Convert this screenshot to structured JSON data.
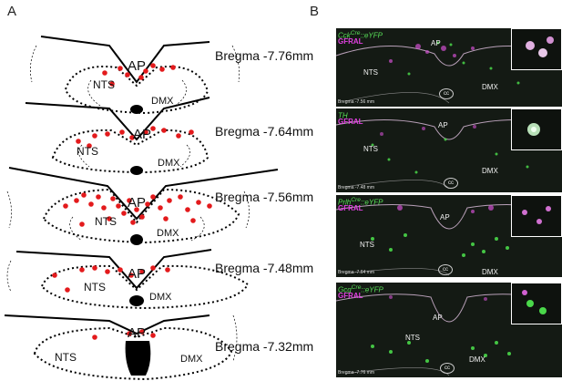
{
  "panel_a": {
    "letter": "A",
    "sections": [
      {
        "bregma": "Bregma -7.76mm",
        "ap": "AP",
        "nts": "NTS",
        "dmx": "DMX"
      },
      {
        "bregma": "Bregma -7.64mm",
        "ap": "AP",
        "nts": "NTS",
        "dmx": "DMX"
      },
      {
        "bregma": "Bregma -7.56mm",
        "ap": "AP",
        "nts": "NTS",
        "dmx": "DMX"
      },
      {
        "bregma": "Bregma -7.48mm",
        "ap": "AP",
        "nts": "NTS",
        "dmx": "DMX"
      },
      {
        "bregma": "Bregma -7.32mm",
        "ap": "AP",
        "nts": "NTS",
        "dmx": "DMX"
      }
    ]
  },
  "panel_b": {
    "letter": "B",
    "images": [
      {
        "marker": "Cck",
        "sup": "Cre",
        "suffix": "::eYFP",
        "receptor": "GFRAL",
        "ap": "AP",
        "nts": "NTS",
        "dmx": "DMX",
        "cc": "cc",
        "bregma": "Bregma -7.56 mm"
      },
      {
        "marker": "TH",
        "sup": "",
        "suffix": "",
        "receptor": "GFRAL",
        "ap": "AP",
        "nts": "NTS",
        "dmx": "DMX",
        "cc": "cc",
        "bregma": "Bregma -7.48 mm"
      },
      {
        "marker": "Prlh",
        "sup": "Cre",
        "suffix": "::eYFP",
        "receptor": "GFRAL",
        "ap": "AP",
        "nts": "NTS",
        "dmx": "DMX",
        "cc": "cc",
        "bregma": "Bregma -7.64 mm"
      },
      {
        "marker": "Gcg",
        "sup": "Cre",
        "suffix": "::eYFP",
        "receptor": "GFRAL",
        "ap": "AP",
        "nts": "NTS",
        "dmx": "DMX",
        "cc": "cc",
        "bregma": "Bregma -7.76 mm"
      }
    ]
  },
  "colors": {
    "dots": "#e31a1c",
    "green": "#3fdc3f",
    "magenta": "#e040e0",
    "outline": "#000000"
  }
}
